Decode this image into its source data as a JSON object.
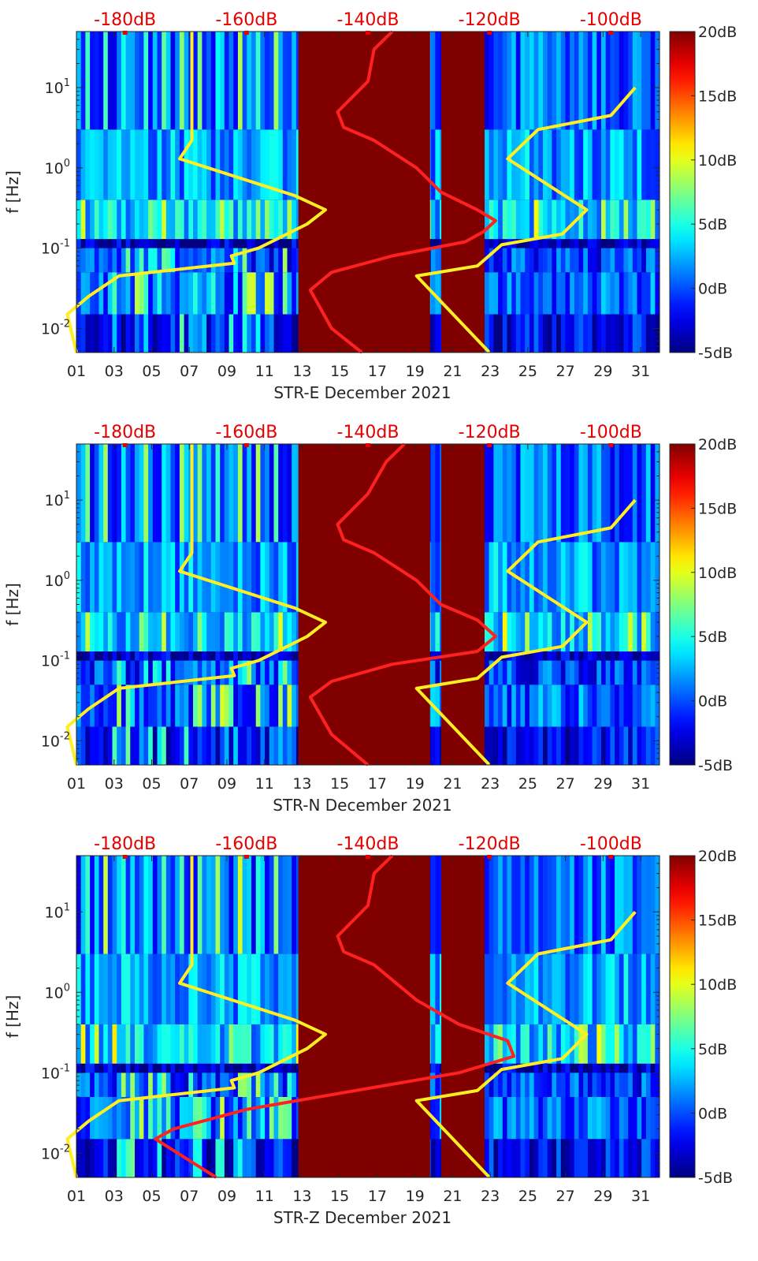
{
  "chart_data": [
    {
      "type": "heatmap",
      "xlabel": "STR-E December 2021",
      "ylabel": "f [Hz]",
      "x_ticks": [
        "01",
        "03",
        "05",
        "07",
        "09",
        "11",
        "13",
        "15",
        "17",
        "19",
        "21",
        "23",
        "25",
        "27",
        "29",
        "31"
      ],
      "y_ticks": [
        {
          "value": 0.01,
          "label": "10-2"
        },
        {
          "value": 0.1,
          "label": "10-1"
        },
        {
          "value": 1,
          "label": "10^0"
        },
        {
          "value": 10,
          "label": "10^1"
        }
      ],
      "yscale": "log",
      "ylim": [
        0.005,
        50
      ],
      "xlim": [
        1,
        32
      ],
      "top_axis_labels": [
        "-180dB",
        "-160dB",
        "-140dB",
        "-120dB",
        "-100dB"
      ],
      "top_axis_range_db": [
        -188,
        -92
      ],
      "colorbar": {
        "ticks": [
          "-5dB",
          "0dB",
          "5dB",
          "10dB",
          "15dB",
          "20dB"
        ],
        "range": [
          -5,
          20
        ]
      },
      "saturated_days": [
        [
          12.8,
          19.8
        ],
        [
          20.4,
          22.7
        ]
      ],
      "series": [
        {
          "color": "#ffee22",
          "points": [
            [
              -188,
              0.005
            ],
            [
              -189.5,
              0.015
            ],
            [
              -186,
              0.025
            ],
            [
              -181,
              0.045
            ],
            [
              -162,
              0.065
            ],
            [
              -162.5,
              0.08
            ],
            [
              -158,
              0.1
            ],
            [
              -150,
              0.2
            ],
            [
              -147,
              0.3
            ],
            [
              -152,
              0.45
            ],
            [
              -171,
              1.3
            ],
            [
              -169,
              2.2
            ],
            [
              -169,
              50
            ]
          ]
        },
        {
          "color": "#ffee22",
          "points": [
            [
              -120,
              0.005
            ],
            [
              -132,
              0.045
            ],
            [
              -122,
              0.06
            ],
            [
              -118,
              0.11
            ],
            [
              -108,
              0.15
            ],
            [
              -104,
              0.3
            ],
            [
              -117,
              1.3
            ],
            [
              -112,
              3.0
            ],
            [
              -100,
              4.5
            ],
            [
              -96,
              10
            ]
          ]
        },
        {
          "color": "#ff2020",
          "points": [
            [
              -141,
              0.005
            ],
            [
              -146,
              0.01
            ],
            [
              -149.5,
              0.03
            ],
            [
              -146,
              0.05
            ],
            [
              -136,
              0.08
            ],
            [
              -124,
              0.12
            ],
            [
              -121,
              0.16
            ],
            [
              -119,
              0.22
            ],
            [
              -122,
              0.3
            ],
            [
              -128,
              0.5
            ],
            [
              -132,
              1.0
            ],
            [
              -139,
              2.2
            ],
            [
              -144,
              3.2
            ],
            [
              -145,
              5
            ],
            [
              -140,
              12
            ],
            [
              -139,
              30
            ],
            [
              -136,
              50
            ]
          ]
        }
      ]
    },
    {
      "type": "heatmap",
      "xlabel": "STR-N December 2021",
      "ylabel": "f [Hz]",
      "x_ticks": [
        "01",
        "03",
        "05",
        "07",
        "09",
        "11",
        "13",
        "15",
        "17",
        "19",
        "21",
        "23",
        "25",
        "27",
        "29",
        "31"
      ],
      "y_ticks": [
        {
          "value": 0.01,
          "label": "10-2"
        },
        {
          "value": 0.1,
          "label": "10-1"
        },
        {
          "value": 1,
          "label": "10^0"
        },
        {
          "value": 10,
          "label": "10^1"
        }
      ],
      "yscale": "log",
      "ylim": [
        0.005,
        50
      ],
      "xlim": [
        1,
        32
      ],
      "top_axis_labels": [
        "-180dB",
        "-160dB",
        "-140dB",
        "-120dB",
        "-100dB"
      ],
      "top_axis_range_db": [
        -188,
        -92
      ],
      "colorbar": {
        "ticks": [
          "-5dB",
          "0dB",
          "5dB",
          "10dB",
          "15dB",
          "20dB"
        ],
        "range": [
          -5,
          20
        ]
      },
      "saturated_days": [
        [
          12.8,
          19.8
        ],
        [
          20.4,
          22.7
        ]
      ],
      "series": [
        {
          "color": "#ffee22",
          "points": [
            [
              -188,
              0.005
            ],
            [
              -189.5,
              0.015
            ],
            [
              -186,
              0.025
            ],
            [
              -181,
              0.045
            ],
            [
              -162,
              0.065
            ],
            [
              -162.5,
              0.08
            ],
            [
              -158,
              0.1
            ],
            [
              -150,
              0.2
            ],
            [
              -147,
              0.3
            ],
            [
              -152,
              0.45
            ],
            [
              -171,
              1.3
            ],
            [
              -169,
              2.2
            ],
            [
              -169,
              50
            ]
          ]
        },
        {
          "color": "#ffee22",
          "points": [
            [
              -120,
              0.005
            ],
            [
              -132,
              0.045
            ],
            [
              -122,
              0.06
            ],
            [
              -118,
              0.11
            ],
            [
              -108,
              0.15
            ],
            [
              -104,
              0.3
            ],
            [
              -117,
              1.3
            ],
            [
              -112,
              3.0
            ],
            [
              -100,
              4.5
            ],
            [
              -96,
              10
            ]
          ]
        },
        {
          "color": "#ff2020",
          "points": [
            [
              -140,
              0.005
            ],
            [
              -146,
              0.012
            ],
            [
              -149.5,
              0.035
            ],
            [
              -146,
              0.055
            ],
            [
              -136,
              0.09
            ],
            [
              -122,
              0.13
            ],
            [
              -119,
              0.2
            ],
            [
              -122,
              0.32
            ],
            [
              -128,
              0.5
            ],
            [
              -132,
              1.0
            ],
            [
              -139,
              2.2
            ],
            [
              -144,
              3.2
            ],
            [
              -145,
              5
            ],
            [
              -140,
              12
            ],
            [
              -137,
              30
            ],
            [
              -134,
              50
            ]
          ]
        }
      ]
    },
    {
      "type": "heatmap",
      "xlabel": "STR-Z December 2021",
      "ylabel": "f [Hz]",
      "x_ticks": [
        "01",
        "03",
        "05",
        "07",
        "09",
        "11",
        "13",
        "15",
        "17",
        "19",
        "21",
        "23",
        "25",
        "27",
        "29",
        "31"
      ],
      "y_ticks": [
        {
          "value": 0.01,
          "label": "10-2"
        },
        {
          "value": 0.1,
          "label": "10-1"
        },
        {
          "value": 1,
          "label": "10^0"
        },
        {
          "value": 10,
          "label": "10^1"
        }
      ],
      "yscale": "log",
      "ylim": [
        0.005,
        50
      ],
      "xlim": [
        1,
        32
      ],
      "top_axis_labels": [
        "-180dB",
        "-160dB",
        "-140dB",
        "-120dB",
        "-100dB"
      ],
      "top_axis_range_db": [
        -188,
        -92
      ],
      "colorbar": {
        "ticks": [
          "-5dB",
          "0dB",
          "5dB",
          "10dB",
          "15dB",
          "20dB"
        ],
        "range": [
          -5,
          20
        ]
      },
      "saturated_days": [
        [
          12.8,
          19.8
        ],
        [
          20.4,
          22.7
        ]
      ],
      "series": [
        {
          "color": "#ffee22",
          "points": [
            [
              -188,
              0.005
            ],
            [
              -189.5,
              0.015
            ],
            [
              -186,
              0.025
            ],
            [
              -181,
              0.045
            ],
            [
              -162,
              0.065
            ],
            [
              -162.5,
              0.08
            ],
            [
              -158,
              0.1
            ],
            [
              -150,
              0.2
            ],
            [
              -147,
              0.3
            ],
            [
              -152,
              0.45
            ],
            [
              -171,
              1.3
            ],
            [
              -169,
              2.2
            ],
            [
              -169,
              50
            ]
          ]
        },
        {
          "color": "#ffee22",
          "points": [
            [
              -120,
              0.005
            ],
            [
              -132,
              0.045
            ],
            [
              -122,
              0.06
            ],
            [
              -118,
              0.11
            ],
            [
              -108,
              0.15
            ],
            [
              -104,
              0.3
            ],
            [
              -117,
              1.3
            ],
            [
              -112,
              3.0
            ],
            [
              -100,
              4.5
            ],
            [
              -96,
              10
            ]
          ]
        },
        {
          "color": "#ff2020",
          "points": [
            [
              -165,
              0.005
            ],
            [
              -175,
              0.015
            ],
            [
              -172,
              0.02
            ],
            [
              -160,
              0.035
            ],
            [
              -145,
              0.055
            ],
            [
              -125,
              0.1
            ],
            [
              -116,
              0.16
            ],
            [
              -117,
              0.25
            ],
            [
              -125,
              0.4
            ],
            [
              -132,
              0.8
            ],
            [
              -139,
              2.2
            ],
            [
              -144,
              3.2
            ],
            [
              -145,
              5
            ],
            [
              -140,
              12
            ],
            [
              -139,
              30
            ],
            [
              -136,
              50
            ]
          ]
        }
      ]
    }
  ]
}
